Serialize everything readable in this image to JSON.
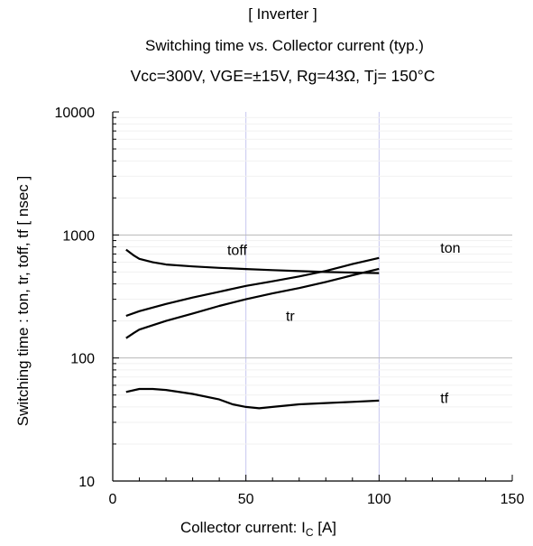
{
  "titles": {
    "line1": "[ Inverter ]",
    "line2": "Switching time  vs. Collector current (typ.)",
    "line3": "Vcc=300V, VGE=±15V, Rg=43Ω, Tj= 150°C"
  },
  "chart_data": {
    "type": "line",
    "title": "Switching time  vs. Collector current (typ.)",
    "xlabel": "Collector current: I",
    "xlabel_sub": "C",
    "xlabel_unit": " [A]",
    "ylabel": "Switching time  :  ton, tr, toff, tf  [ nsec ]",
    "xlim": [
      0,
      150
    ],
    "ylim": [
      10,
      10000
    ],
    "yscale": "log",
    "grid": true,
    "x_ticks": [
      "0",
      "50",
      "100",
      "150"
    ],
    "y_ticks": [
      "10",
      "100",
      "1000",
      "10000"
    ],
    "series": [
      {
        "name": "toff",
        "x": [
          5,
          8,
          10,
          15,
          20,
          30,
          40,
          50,
          60,
          70,
          80,
          90,
          100
        ],
        "values": [
          760,
          680,
          640,
          600,
          575,
          555,
          540,
          528,
          518,
          508,
          500,
          495,
          490
        ]
      },
      {
        "name": "ton",
        "x": [
          5,
          10,
          20,
          30,
          40,
          50,
          60,
          70,
          80,
          90,
          100
        ],
        "values": [
          220,
          240,
          275,
          310,
          345,
          385,
          420,
          460,
          510,
          580,
          650
        ]
      },
      {
        "name": "tr",
        "x": [
          5,
          8,
          10,
          20,
          30,
          40,
          50,
          60,
          70,
          80,
          90,
          100
        ],
        "values": [
          145,
          160,
          170,
          200,
          230,
          265,
          300,
          335,
          370,
          415,
          470,
          530
        ]
      },
      {
        "name": "tf",
        "x": [
          5,
          10,
          15,
          20,
          30,
          40,
          45,
          50,
          55,
          60,
          70,
          80,
          90,
          100
        ],
        "values": [
          53,
          56,
          56,
          55,
          51,
          46,
          42,
          40,
          39,
          40,
          42,
          43,
          44,
          45
        ]
      }
    ],
    "annotations": [
      {
        "text": "toff",
        "x": 43,
        "y": 690
      },
      {
        "text": "ton",
        "x": 123,
        "y": 720
      },
      {
        "text": "tr",
        "x": 65,
        "y": 200
      },
      {
        "text": "tf",
        "x": 123,
        "y": 43
      }
    ]
  }
}
